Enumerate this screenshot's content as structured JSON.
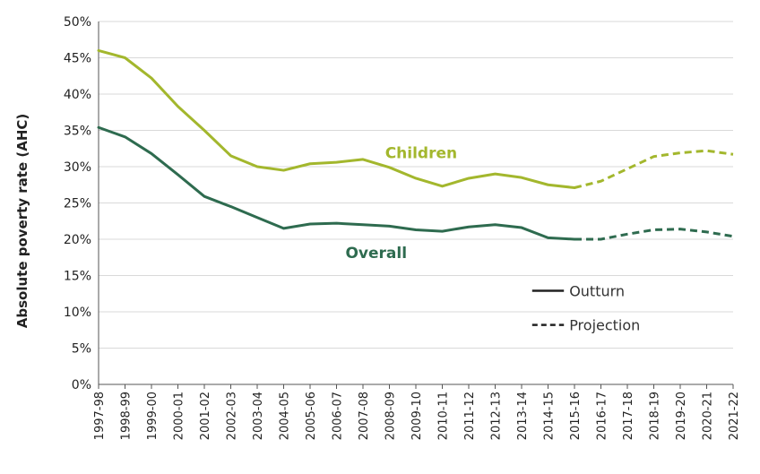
{
  "chart_data": {
    "type": "line",
    "title": "",
    "xlabel": "",
    "ylabel": "Absolute poverty rate (AHC)",
    "ylim": [
      0,
      50
    ],
    "y_ticks": [
      "0%",
      "5%",
      "10%",
      "15%",
      "20%",
      "25%",
      "30%",
      "35%",
      "40%",
      "45%",
      "50%"
    ],
    "categories": [
      "1997-98",
      "1998-99",
      "1999-00",
      "2000-01",
      "2001-02",
      "2002-03",
      "2003-04",
      "2004-05",
      "2005-06",
      "2006-07",
      "2007-08",
      "2008-09",
      "2009-10",
      "2010-11",
      "2011-12",
      "2012-13",
      "2013-14",
      "2014-15",
      "2015-16",
      "2016-17",
      "2017-18",
      "2018-19",
      "2019-20",
      "2020-21",
      "2021-22"
    ],
    "outturn_end_index": 18,
    "series": [
      {
        "name": "Children",
        "color": "#a3b72d",
        "values": [
          46.0,
          45.0,
          42.2,
          38.3,
          35.0,
          31.5,
          30.0,
          29.5,
          30.4,
          30.6,
          31.0,
          29.9,
          28.4,
          27.3,
          28.4,
          29.0,
          28.5,
          27.5,
          27.1,
          28.0,
          29.7,
          31.4,
          31.9,
          32.2,
          31.7
        ]
      },
      {
        "name": "Overall",
        "color": "#2e6b4f",
        "values": [
          35.4,
          34.1,
          31.8,
          28.9,
          25.9,
          24.5,
          23.0,
          21.5,
          22.1,
          22.2,
          22.0,
          21.8,
          21.3,
          21.1,
          21.7,
          22.0,
          21.6,
          20.2,
          20.0,
          20.0,
          20.7,
          21.3,
          21.4,
          21.0,
          20.4
        ]
      }
    ],
    "legend": {
      "placement": "lower-right",
      "items": [
        {
          "label": "Outturn",
          "style": "solid"
        },
        {
          "label": "Projection",
          "style": "dashed"
        }
      ]
    },
    "grid": true
  }
}
